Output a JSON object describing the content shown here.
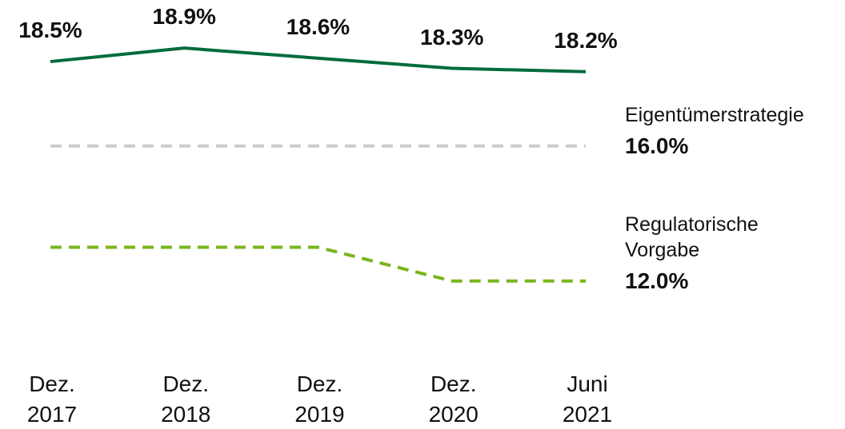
{
  "chart_data": {
    "type": "line",
    "categories": [
      "Dez. 2017",
      "Dez. 2018",
      "Dez. 2019",
      "Dez. 2020",
      "Juni 2021"
    ],
    "ylim": [
      11,
      20.3
    ],
    "series": [
      {
        "color": "#006b3c",
        "dash": false,
        "values": [
          18.5,
          18.9,
          18.6,
          18.3,
          18.2
        ],
        "value_labels": [
          "18.5%",
          "18.9%",
          "18.6%",
          "18.3%",
          "18.2%"
        ]
      },
      {
        "name": "Eigentümerstrategie",
        "color": "#cccccc",
        "dash": true,
        "values": [
          16.0,
          16.0,
          16.0,
          16.0,
          16.0
        ],
        "end_label": "16.0%"
      },
      {
        "name": "Regulatorische Vorgabe",
        "color": "#7ab51d",
        "dash": true,
        "values": [
          13.0,
          13.0,
          13.0,
          12.0,
          12.0
        ],
        "end_label": "12.0%"
      }
    ]
  }
}
